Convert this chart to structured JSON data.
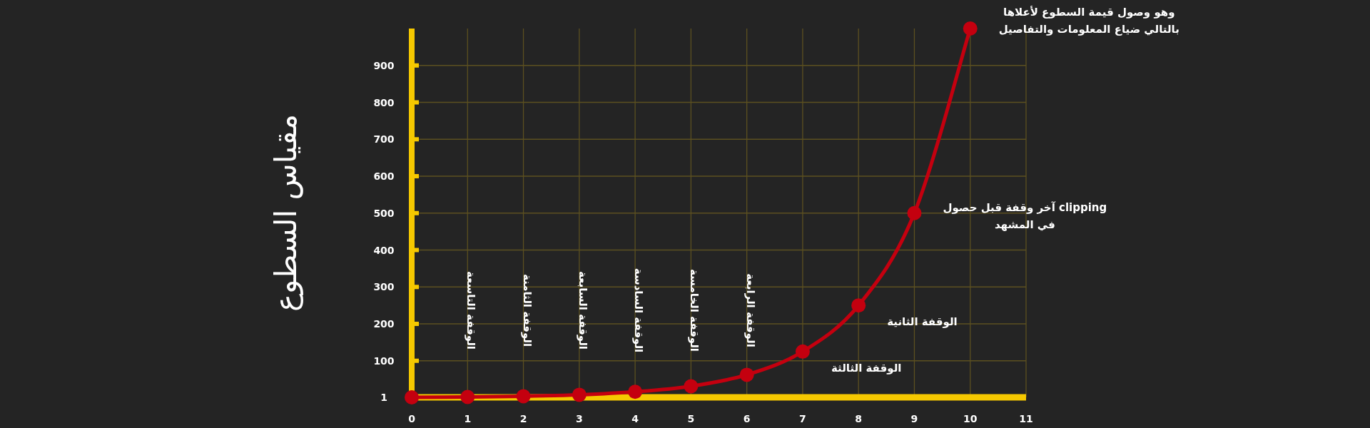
{
  "chart_data": {
    "type": "line",
    "ylabel": "مقياس السطوع",
    "x": [
      0,
      1,
      2,
      3,
      4,
      5,
      6,
      7,
      8,
      9,
      10
    ],
    "series": [
      {
        "color": "#c4000f",
        "values": [
          1,
          2,
          4,
          8,
          16,
          31,
          62,
          125,
          250,
          500,
          1000
        ]
      }
    ],
    "xlim": [
      0,
      11
    ],
    "xticks": [
      0,
      1,
      2,
      3,
      4,
      5,
      6,
      7,
      8,
      9,
      10,
      11
    ],
    "ylim": [
      1,
      1000
    ],
    "yticks": [
      1,
      100,
      200,
      300,
      400,
      500,
      600,
      700,
      800,
      900
    ],
    "grid": true,
    "marker": "circle",
    "line_style": "solid",
    "annotations": [
      "الوقفة التاسعة",
      "الوقفة الثامنة",
      "الوقفة السابعة",
      "الوقفة السادسة",
      "الوقفة الخامسة",
      "الوقفة الرابعة",
      {
        "text": "الوقفة الثالثة",
        "x": 7,
        "y": 125
      },
      {
        "text": "الوقفة الثانية",
        "x": 8,
        "y": 250
      },
      {
        "text": "آخر وقفة قبل حصول clipping\nفي المشهد",
        "x": 9,
        "y": 500
      },
      {
        "text": "وهو وصول قيمة السطوع لأعلاها\nبالتالي ضياع المعلومات والتفاصيل",
        "x": 10,
        "y": 1000
      }
    ]
  }
}
